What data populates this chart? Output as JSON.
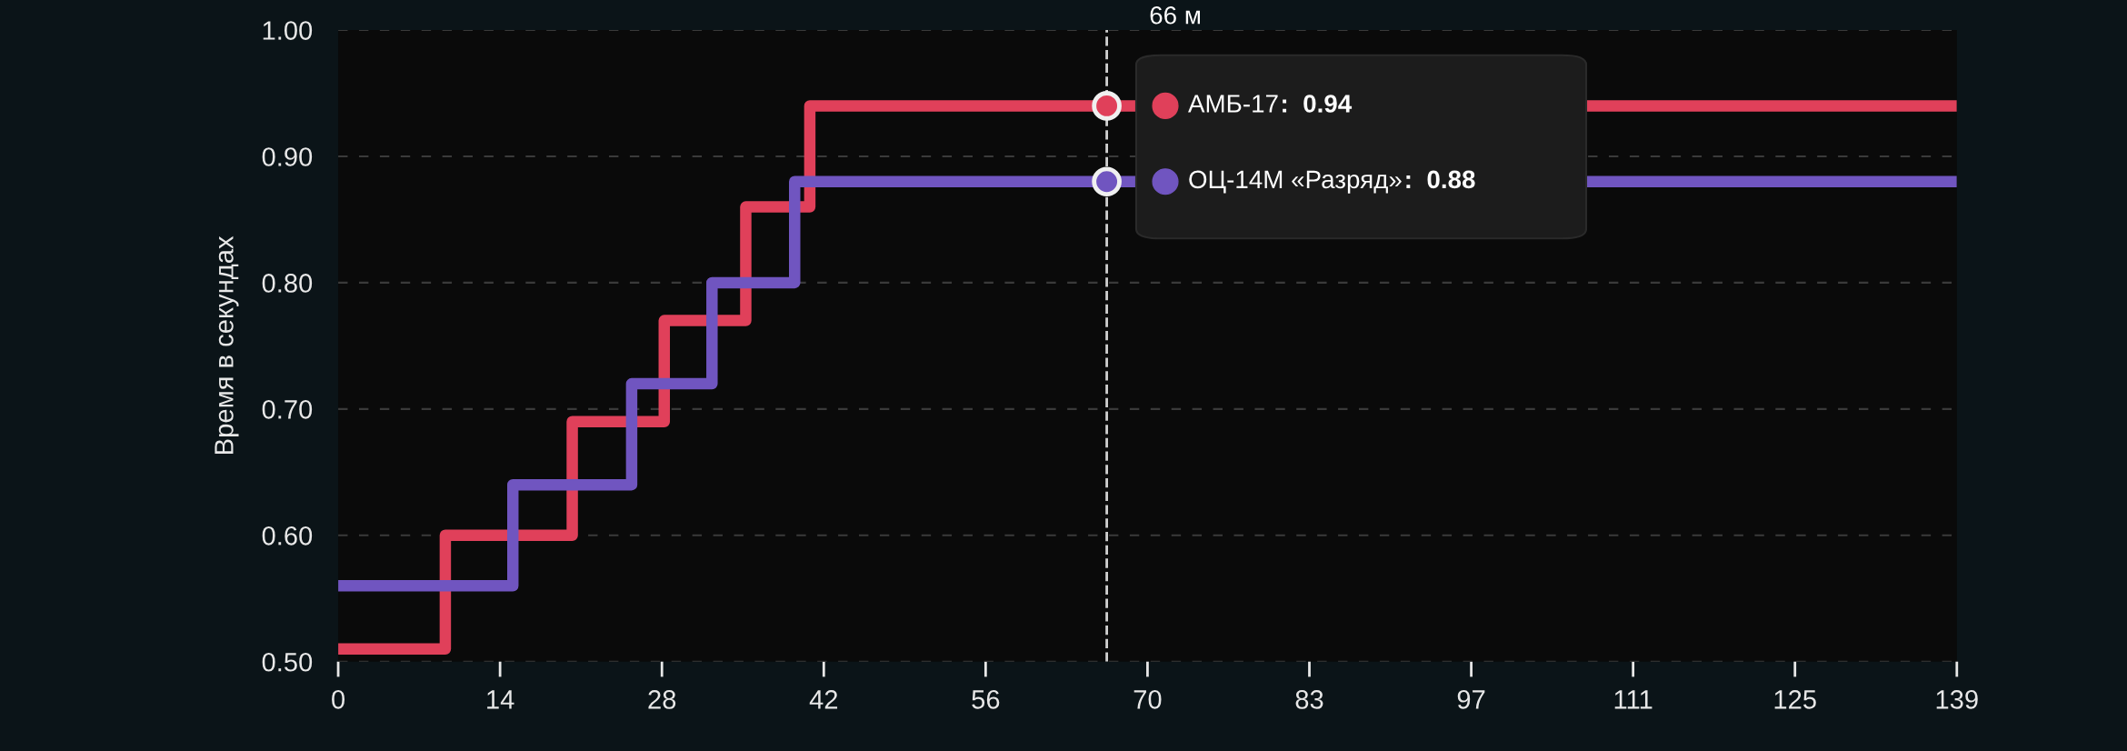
{
  "chart_data": {
    "type": "step",
    "ylabel": "Время в секундах",
    "xlim": [
      0,
      139
    ],
    "xticks": [
      0,
      {
        "value": 13.9,
        "label": "14"
      },
      {
        "value": 27.8,
        "label": "28"
      },
      {
        "value": 41.7,
        "label": "42"
      },
      {
        "value": 55.6,
        "label": "56"
      },
      {
        "value": 69.5,
        "label": "70"
      },
      {
        "value": 83.4,
        "label": "83"
      },
      {
        "value": 97.3,
        "label": "97"
      },
      {
        "value": 111.2,
        "label": "111"
      },
      {
        "value": 125.1,
        "label": "125"
      },
      139
    ],
    "ylim": [
      0.5,
      1.0
    ],
    "yticks": [
      {
        "value": 0.5,
        "label": "0.50"
      },
      {
        "value": 0.6,
        "label": "0.60"
      },
      {
        "value": 0.7,
        "label": "0.70"
      },
      {
        "value": 0.8,
        "label": "0.80"
      },
      {
        "value": 0.9,
        "label": "0.90"
      },
      {
        "value": 1.0,
        "label": "1.00"
      }
    ],
    "grid": "y",
    "legend": "top",
    "marker": "none",
    "line_style": "solid",
    "series": [
      {
        "name": "АМБ-17",
        "color": "#e0405a",
        "x": [
          0,
          9.2,
          20.1,
          28,
          35,
          40.5,
          139
        ],
        "values": [
          0.51,
          0.6,
          0.69,
          0.77,
          0.86,
          0.94,
          0.94
        ]
      },
      {
        "name": "ОЦ-14М «Разряд»",
        "color": "#7055c0",
        "x": [
          0,
          15,
          25.2,
          32.1,
          39.2,
          139
        ],
        "values": [
          0.56,
          0.64,
          0.72,
          0.8,
          0.88,
          0.88
        ]
      }
    ],
    "ref_lines": [
      {
        "axis": "x",
        "value": 66,
        "label": "66 м",
        "color": "#d0d0d0",
        "line_style": "dashed"
      }
    ],
    "annotations": [
      ":  0.94",
      ":  0.88"
    ]
  }
}
